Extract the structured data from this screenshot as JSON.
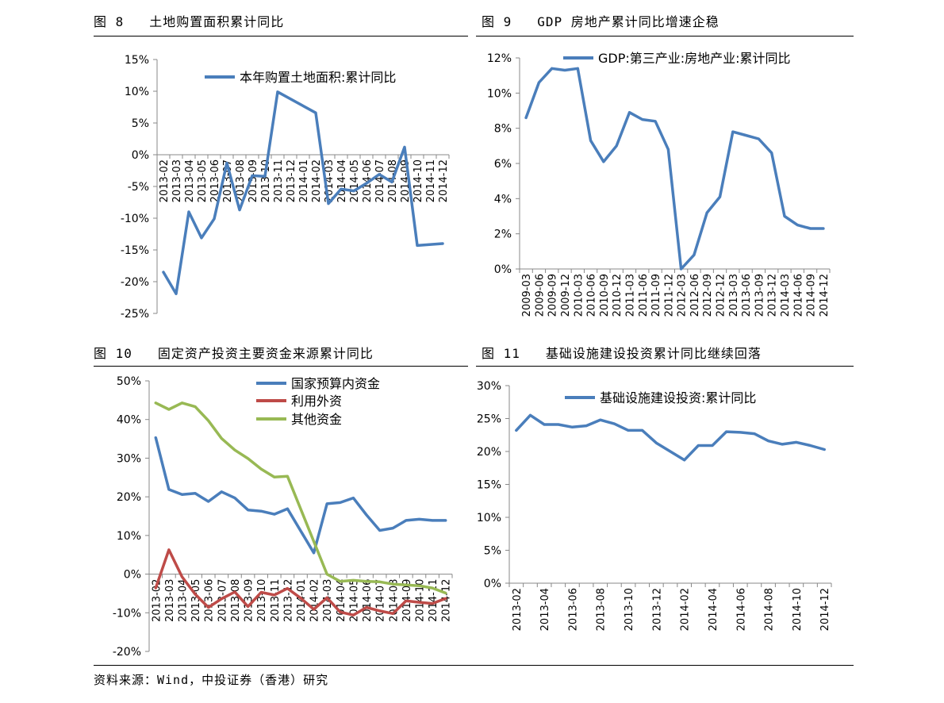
{
  "figures": [
    {
      "label": "图 8",
      "title": "土地购置面积累计同比"
    },
    {
      "label": "图 9",
      "title": "GDP 房地产累计同比增速企稳"
    },
    {
      "label": "图 10",
      "title": "固定资产投资主要资金来源累计同比"
    },
    {
      "label": "图 11",
      "title": "基础设施建设投资累计同比继续回落"
    }
  ],
  "source": "资料来源：Wind，中投证券（香港）研究",
  "colors": {
    "blue": "#4A7EBB",
    "red": "#BE4B48",
    "green": "#98B954"
  },
  "chart_data": [
    {
      "type": "line",
      "categories": [
        "2013-02",
        "2013-03",
        "2013-04",
        "2013-05",
        "2013-06",
        "2013-07",
        "2013-08",
        "2013-09",
        "2013-10",
        "2013-11",
        "2013-12",
        "2014-01",
        "2014-02",
        "2014-03",
        "2014-04",
        "2014-05",
        "2014-06",
        "2014-07",
        "2014-08",
        "2014-09",
        "2014-10",
        "2014-11",
        "2014-12"
      ],
      "series": [
        {
          "name": "本年购置土地面积:累计同比",
          "color": "#4A7EBB",
          "values": [
            -18.5,
            -21.9,
            -9.0,
            -13.1,
            -10.1,
            -1.3,
            -8.7,
            -3.3,
            -3.4,
            9.9,
            null,
            null,
            6.6,
            -7.7,
            -5.4,
            -5.7,
            -4.5,
            -3.1,
            -4.3,
            1.2,
            -14.3,
            null,
            -14.0
          ]
        }
      ],
      "yticks": [
        "15%",
        "10%",
        "5%",
        "0%",
        "-5%",
        "-10%",
        "-15%",
        "-20%",
        "-25%"
      ],
      "ylim": [
        -25,
        15
      ]
    },
    {
      "type": "line",
      "categories": [
        "2009-03",
        "2009-06",
        "2009-09",
        "2009-12",
        "2010-03",
        "2010-06",
        "2010-09",
        "2010-12",
        "2011-03",
        "2011-06",
        "2011-09",
        "2011-12",
        "2012-03",
        "2012-06",
        "2012-09",
        "2012-12",
        "2013-03",
        "2013-06",
        "2013-09",
        "2013-12",
        "2014-03",
        "2014-06",
        "2014-09",
        "2014-12"
      ],
      "series": [
        {
          "name": "GDP:第三产业:房地产业:累计同比",
          "color": "#4A7EBB",
          "values": [
            8.6,
            10.6,
            11.4,
            11.3,
            11.4,
            7.3,
            6.1,
            7.0,
            8.9,
            8.5,
            8.4,
            6.8,
            0.0,
            0.8,
            3.2,
            4.1,
            7.8,
            7.6,
            7.4,
            6.6,
            3.0,
            2.5,
            2.3,
            2.3
          ]
        }
      ],
      "yticks": [
        "12%",
        "10%",
        "8%",
        "6%",
        "4%",
        "2%",
        "0%"
      ],
      "ylim": [
        0,
        12
      ]
    },
    {
      "type": "line",
      "categories": [
        "2013-02",
        "2013-03",
        "2013-04",
        "2013-05",
        "2013-06",
        "2013-07",
        "2013-08",
        "2013-09",
        "2013-10",
        "2013-11",
        "2013-12",
        "2014-01",
        "2014-02",
        "2014-03",
        "2014-04",
        "2014-05",
        "2014-06",
        "2014-07",
        "2014-08",
        "2014-09",
        "2014-10",
        "2014-11",
        "2014-12"
      ],
      "series": [
        {
          "name": "国家预算内资金",
          "color": "#4A7EBB",
          "values": [
            35.3,
            21.9,
            20.6,
            20.9,
            18.8,
            21.3,
            19.7,
            16.6,
            16.3,
            15.5,
            16.9,
            null,
            5.5,
            18.2,
            18.5,
            19.7,
            15.3,
            11.3,
            11.9,
            13.9,
            14.2,
            13.9,
            13.9
          ]
        },
        {
          "name": "利用外资",
          "color": "#BE4B48",
          "values": [
            -3.6,
            6.3,
            -0.7,
            -5.2,
            -8.6,
            -6.4,
            -4.6,
            -8.4,
            -4.7,
            -5.4,
            -3.7,
            -6.2,
            -9.1,
            -6.1,
            -9.8,
            -10.6,
            -8.6,
            -9.5,
            -10.2,
            -6.9,
            -7.3,
            -7.6,
            -6.3
          ]
        },
        {
          "name": "其他资金",
          "color": "#98B954",
          "values": [
            44.3,
            42.6,
            44.3,
            43.3,
            39.7,
            35.1,
            32.1,
            29.9,
            27.2,
            25.1,
            25.3,
            null,
            null,
            0.0,
            -1.9,
            -1.6,
            -1.9,
            -2.0,
            -2.6,
            -2.8,
            -3.0,
            -3.6,
            -4.9
          ]
        }
      ],
      "yticks": [
        "50%",
        "40%",
        "30%",
        "20%",
        "10%",
        "0%",
        "-10%",
        "-20%"
      ],
      "ylim": [
        -20,
        50
      ]
    },
    {
      "type": "line",
      "categories": [
        "2013-02",
        "2013-03",
        "2013-04",
        "2013-05",
        "2013-06",
        "2013-07",
        "2013-08",
        "2013-09",
        "2013-10",
        "2013-11",
        "2013-12",
        "2014-01",
        "2014-02",
        "2014-03",
        "2014-04",
        "2014-05",
        "2014-06",
        "2014-07",
        "2014-08",
        "2014-09",
        "2014-10",
        "2014-11",
        "2014-12"
      ],
      "xtick_step": 2,
      "series": [
        {
          "name": "基础设施建设投资:累计同比",
          "color": "#4A7EBB",
          "values": [
            23.2,
            25.5,
            24.1,
            24.1,
            23.7,
            23.9,
            24.8,
            24.2,
            23.2,
            23.2,
            21.3,
            20.0,
            18.7,
            20.9,
            20.9,
            23.0,
            22.9,
            22.7,
            21.6,
            21.1,
            21.4,
            20.9,
            20.3
          ]
        }
      ],
      "yticks": [
        "30%",
        "25%",
        "20%",
        "15%",
        "10%",
        "5%",
        "0%"
      ],
      "ylim": [
        0,
        30
      ]
    }
  ]
}
